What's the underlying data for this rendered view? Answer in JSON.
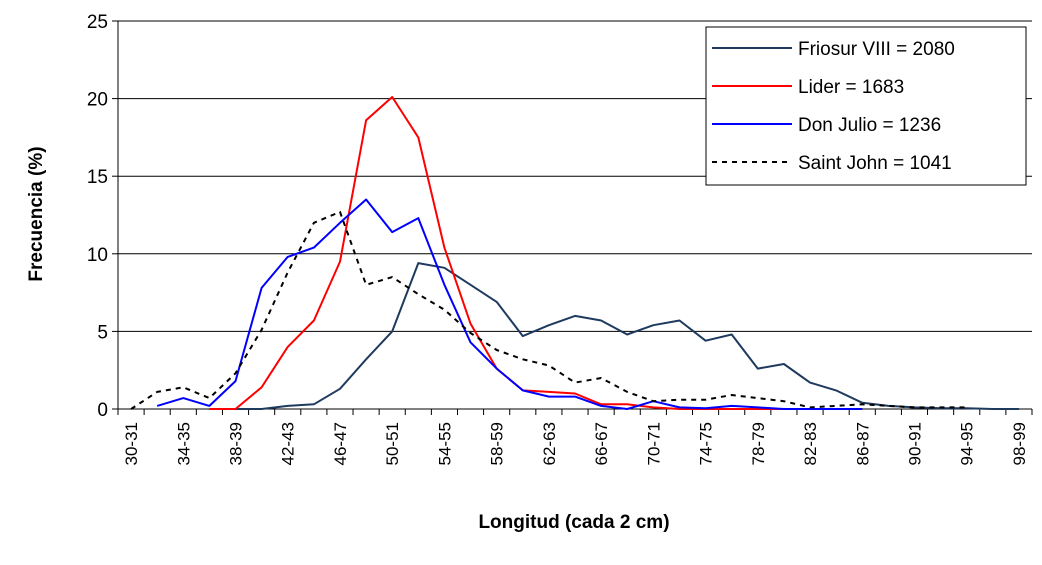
{
  "chart_data": {
    "type": "line",
    "xlabel": "Longitud (cada 2 cm)",
    "ylabel": "Frecuencia (%)",
    "ylim": [
      0,
      25
    ],
    "yticks": [
      0,
      5,
      10,
      15,
      20,
      25
    ],
    "grid": "horizontal",
    "legend_position": "top-right",
    "categories": [
      "30-31",
      "32-33",
      "34-35",
      "36-37",
      "38-39",
      "40-41",
      "42-43",
      "44-45",
      "46-47",
      "48-49",
      "50-51",
      "52-53",
      "54-55",
      "56-57",
      "58-59",
      "60-61",
      "62-63",
      "64-65",
      "66-67",
      "68-69",
      "70-71",
      "72-73",
      "74-75",
      "76-77",
      "78-79",
      "80-81",
      "82-83",
      "84-85",
      "86-87",
      "88-89",
      "90-91",
      "92-93",
      "94-95",
      "96-97",
      "98-99"
    ],
    "category_labels": [
      "30-31",
      "",
      "34-35",
      "",
      "38-39",
      "",
      "42-43",
      "",
      "46-47",
      "",
      "50-51",
      "",
      "54-55",
      "",
      "58-59",
      "",
      "62-63",
      "",
      "66-67",
      "",
      "70-71",
      "",
      "74-75",
      "",
      "78-79",
      "",
      "82-83",
      "",
      "86-87",
      "",
      "90-91",
      "",
      "94-95",
      "",
      "98-99"
    ],
    "series": [
      {
        "name": "Friosur VIII = 2080",
        "color": "#1f3a5f",
        "dash": "solid",
        "values": [
          null,
          null,
          null,
          null,
          0,
          0,
          0.2,
          0.3,
          1.3,
          3.2,
          5,
          9.4,
          9.1,
          8,
          6.9,
          4.7,
          5.4,
          6,
          5.7,
          4.8,
          5.4,
          5.7,
          4.4,
          4.8,
          2.6,
          2.9,
          1.7,
          1.2,
          0.4,
          0.2,
          0.1,
          0.05,
          0.05,
          0,
          0
        ]
      },
      {
        "name": "Lider = 1683",
        "color": "#ff0000",
        "dash": "solid",
        "values": [
          null,
          null,
          null,
          0,
          0,
          1.4,
          4,
          5.7,
          9.5,
          18.6,
          20.1,
          17.5,
          10.4,
          5.5,
          2.6,
          1.2,
          1.1,
          1,
          0.3,
          0.3,
          0.1,
          0,
          0,
          0,
          0,
          0,
          0,
          0,
          0,
          null,
          null,
          null,
          null,
          null,
          null
        ]
      },
      {
        "name": "Don Julio = 1236",
        "color": "#0000ff",
        "dash": "solid",
        "values": [
          null,
          0.2,
          0.7,
          0.2,
          1.8,
          7.8,
          9.8,
          10.4,
          12,
          13.5,
          11.4,
          12.3,
          8,
          4.3,
          2.6,
          1.2,
          0.8,
          0.8,
          0.2,
          0,
          0.5,
          0.1,
          0.05,
          0.2,
          0.1,
          0,
          0,
          0,
          0,
          null,
          null,
          null,
          null,
          null,
          null
        ]
      },
      {
        "name": "Saint John = 1041",
        "color": "#000000",
        "dash": "dotted",
        "values": [
          0,
          1.1,
          1.4,
          0.7,
          2.3,
          5.1,
          8.8,
          12,
          12.7,
          8,
          8.5,
          7.4,
          6.4,
          4.9,
          3.8,
          3.2,
          2.8,
          1.7,
          2,
          1.1,
          0.5,
          0.6,
          0.6,
          0.9,
          0.7,
          0.5,
          0.1,
          0.2,
          0.3,
          0.2,
          0.1,
          0.1,
          0.1,
          null,
          null
        ]
      }
    ]
  }
}
